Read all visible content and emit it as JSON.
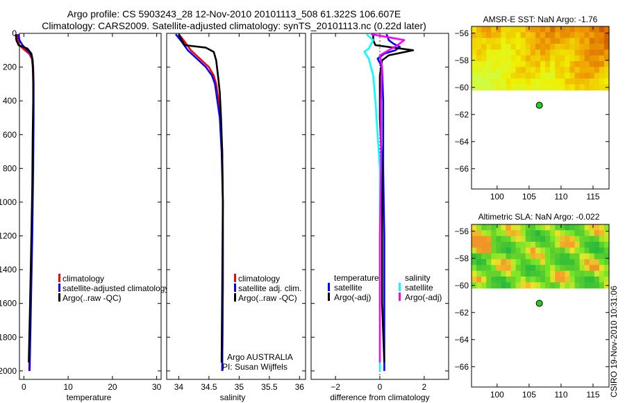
{
  "figure": {
    "title_line1": "Argo profile: CS 5903243_28 12-Nov-2010 20101113_508 61.322S 106.607E",
    "title_line2": "Climatology: CARS2009. Satellite-adjusted climatology: synTS_20101113.nc (0.22d later)",
    "side_stamp": "CSIRO 19-Nov-2010 10:31:06"
  },
  "colors": {
    "climatology": "#ff0000",
    "satellite": "#0000ff",
    "argo": "#000000",
    "satellite_salinity": "#00ffff",
    "argo_adj_salinity": "#ff00ff",
    "float_marker": "#22cc22"
  },
  "chart_data": [
    {
      "type": "line",
      "name": "temperature-profile",
      "xlabel": "temperature",
      "ylabel": "",
      "xlim": [
        -1,
        31
      ],
      "ylim": [
        2050,
        0
      ],
      "xticks": [
        0,
        10,
        20,
        30
      ],
      "yticks": [
        0,
        200,
        400,
        600,
        800,
        1000,
        1200,
        1400,
        1600,
        1800,
        2000
      ],
      "legend": {
        "placement": "center-right",
        "entries": [
          "climatology",
          "satellite-adjusted climatology",
          "Argo(..raw -QC)"
        ]
      },
      "series": [
        {
          "name": "climatology",
          "color": "#ff0000",
          "points": [
            [
              -1.5,
              5
            ],
            [
              -1.4,
              40
            ],
            [
              -1.0,
              70
            ],
            [
              0.0,
              95
            ],
            [
              1.2,
              120
            ],
            [
              1.8,
              150
            ],
            [
              2.0,
              200
            ],
            [
              2.1,
              300
            ],
            [
              2.1,
              500
            ],
            [
              2.0,
              800
            ],
            [
              1.8,
              1200
            ],
            [
              1.5,
              1600
            ],
            [
              1.2,
              2000
            ]
          ]
        },
        {
          "name": "satellite-adjusted climatology",
          "color": "#0000ff",
          "points": [
            [
              -1.2,
              5
            ],
            [
              -1.0,
              40
            ],
            [
              -0.3,
              70
            ],
            [
              0.6,
              95
            ],
            [
              1.5,
              120
            ],
            [
              1.9,
              150
            ],
            [
              2.1,
              200
            ],
            [
              2.2,
              300
            ],
            [
              2.2,
              500
            ],
            [
              2.1,
              800
            ],
            [
              1.9,
              1200
            ],
            [
              1.6,
              1600
            ],
            [
              1.3,
              2000
            ]
          ]
        },
        {
          "name": "Argo(..raw -QC)",
          "color": "#000000",
          "points": [
            [
              -1.8,
              5
            ],
            [
              -1.7,
              40
            ],
            [
              -1.2,
              70
            ],
            [
              0.8,
              90
            ],
            [
              1.7,
              120
            ],
            [
              2.0,
              160
            ],
            [
              2.1,
              250
            ],
            [
              2.1,
              400
            ],
            [
              2.0,
              600
            ],
            [
              1.9,
              900
            ],
            [
              1.7,
              1200
            ],
            [
              1.4,
              1600
            ],
            [
              1.1,
              1950
            ]
          ]
        }
      ]
    },
    {
      "type": "line",
      "name": "salinity-profile",
      "xlabel": "salinity",
      "ylabel": "",
      "xlim": [
        33.8,
        36.1
      ],
      "ylim": [
        2050,
        0
      ],
      "xticks": [
        34,
        34.5,
        35,
        35.5,
        36
      ],
      "yticks": [
        0,
        200,
        400,
        600,
        800,
        1000,
        1200,
        1400,
        1600,
        1800,
        2000
      ],
      "legend": {
        "placement": "center-right",
        "entries": [
          "climatology",
          "satellite adj. clim.",
          "Argo(..raw -QC)"
        ]
      },
      "annotations": [
        "Argo AUSTRALIA",
        "PI: Susan Wijffels"
      ],
      "series": [
        {
          "name": "climatology",
          "color": "#ff0000",
          "points": [
            [
              34.0,
              5
            ],
            [
              34.1,
              50
            ],
            [
              34.2,
              100
            ],
            [
              34.35,
              150
            ],
            [
              34.5,
              200
            ],
            [
              34.58,
              250
            ],
            [
              34.62,
              300
            ],
            [
              34.66,
              400
            ],
            [
              34.69,
              500
            ],
            [
              34.72,
              700
            ],
            [
              34.73,
              1000
            ],
            [
              34.73,
              1500
            ],
            [
              34.72,
              2000
            ]
          ]
        },
        {
          "name": "satellite adj. clim.",
          "color": "#0000ff",
          "points": [
            [
              33.95,
              5
            ],
            [
              34.05,
              50
            ],
            [
              34.15,
              100
            ],
            [
              34.3,
              150
            ],
            [
              34.45,
              200
            ],
            [
              34.55,
              250
            ],
            [
              34.6,
              300
            ],
            [
              34.64,
              400
            ],
            [
              34.68,
              500
            ],
            [
              34.71,
              700
            ],
            [
              34.73,
              1000
            ],
            [
              34.73,
              1500
            ],
            [
              34.72,
              2000
            ]
          ]
        },
        {
          "name": "Argo(..raw -QC)",
          "color": "#000000",
          "points": [
            [
              34.0,
              5
            ],
            [
              34.05,
              40
            ],
            [
              34.1,
              70
            ],
            [
              34.45,
              85
            ],
            [
              34.58,
              110
            ],
            [
              34.62,
              160
            ],
            [
              34.65,
              250
            ],
            [
              34.68,
              350
            ],
            [
              34.7,
              500
            ],
            [
              34.72,
              700
            ],
            [
              34.73,
              1000
            ],
            [
              34.72,
              1500
            ],
            [
              34.71,
              1950
            ]
          ]
        }
      ]
    },
    {
      "type": "line",
      "name": "difference-profile",
      "xlabel": "difference from climatology",
      "ylabel": "",
      "xlim": [
        -3.1,
        3.1
      ],
      "ylim": [
        2050,
        0
      ],
      "xticks": [
        -2,
        0,
        2
      ],
      "yticks": [
        0,
        200,
        400,
        600,
        800,
        1000,
        1200,
        1400,
        1600,
        1800,
        2000
      ],
      "legend": {
        "placement": "center",
        "temperature_header": "temperature",
        "salinity_header": "salinity",
        "entries": [
          "satellite",
          "Argo(-adj)",
          "satellite",
          "Argo(-adj)"
        ]
      },
      "series": [
        {
          "name": "temperature satellite",
          "color": "#0000ff",
          "points": [
            [
              0.3,
              5
            ],
            [
              0.4,
              40
            ],
            [
              0.6,
              60
            ],
            [
              0.9,
              80
            ],
            [
              0.7,
              100
            ],
            [
              0.2,
              120
            ],
            [
              -0.1,
              150
            ],
            [
              0.1,
              200
            ],
            [
              0.15,
              400
            ],
            [
              0.15,
              800
            ],
            [
              0.2,
              1200
            ],
            [
              0.2,
              1600
            ],
            [
              0.2,
              2000
            ]
          ]
        },
        {
          "name": "temperature Argo(-adj)",
          "color": "#000000",
          "points": [
            [
              -0.3,
              5
            ],
            [
              -0.3,
              40
            ],
            [
              -0.2,
              70
            ],
            [
              1.5,
              100
            ],
            [
              0.4,
              130
            ],
            [
              0.1,
              160
            ],
            [
              0.0,
              250
            ],
            [
              0.0,
              500
            ],
            [
              0.1,
              800
            ],
            [
              0.1,
              1200
            ],
            [
              0.1,
              1600
            ],
            [
              0.2,
              1950
            ]
          ]
        },
        {
          "name": "salinity satellite",
          "color": "#00ffff",
          "points": [
            [
              -0.6,
              5
            ],
            [
              -0.3,
              40
            ],
            [
              -0.5,
              90
            ],
            [
              -0.7,
              110
            ],
            [
              -0.5,
              150
            ],
            [
              -0.3,
              250
            ],
            [
              -0.2,
              400
            ],
            [
              -0.1,
              600
            ],
            [
              0.0,
              800
            ],
            [
              0.0,
              1200
            ],
            [
              0.0,
              1600
            ],
            [
              0.0,
              2000
            ]
          ]
        },
        {
          "name": "salinity Argo(-adj)",
          "color": "#ff00ff",
          "points": [
            [
              -0.4,
              5
            ],
            [
              1.1,
              40
            ],
            [
              0.8,
              70
            ],
            [
              0.4,
              100
            ],
            [
              0.0,
              130
            ],
            [
              0.1,
              200
            ],
            [
              0.05,
              400
            ],
            [
              0.05,
              800
            ],
            [
              0.0,
              1200
            ],
            [
              0.0,
              1600
            ],
            [
              0.0,
              1950
            ]
          ]
        }
      ]
    },
    {
      "type": "heatmap",
      "name": "amsre-sst-map",
      "title": "AMSR-E SST: NaN Argo: -1.76",
      "xlim": [
        96,
        117.5
      ],
      "ylim": [
        -67.5,
        -55.5
      ],
      "xticks": [
        100,
        105,
        110,
        115
      ],
      "yticks": [
        -56,
        -58,
        -60,
        -62,
        -64,
        -66
      ],
      "data_lat_range": [
        -60.2,
        -55.5
      ],
      "palette": "sst",
      "marker": {
        "lon": 106.607,
        "lat": -61.322
      }
    },
    {
      "type": "heatmap",
      "name": "altimetric-sla-map",
      "title": "Altimetric SLA: NaN Argo: -0.022",
      "xlim": [
        96,
        117.5
      ],
      "ylim": [
        -67.5,
        -55.5
      ],
      "xticks": [
        100,
        105,
        110,
        115
      ],
      "yticks": [
        -56,
        -58,
        -60,
        -62,
        -64,
        -66
      ],
      "data_lat_range": [
        -60.2,
        -55.5
      ],
      "palette": "sla",
      "marker": {
        "lon": 106.607,
        "lat": -61.322
      }
    }
  ]
}
